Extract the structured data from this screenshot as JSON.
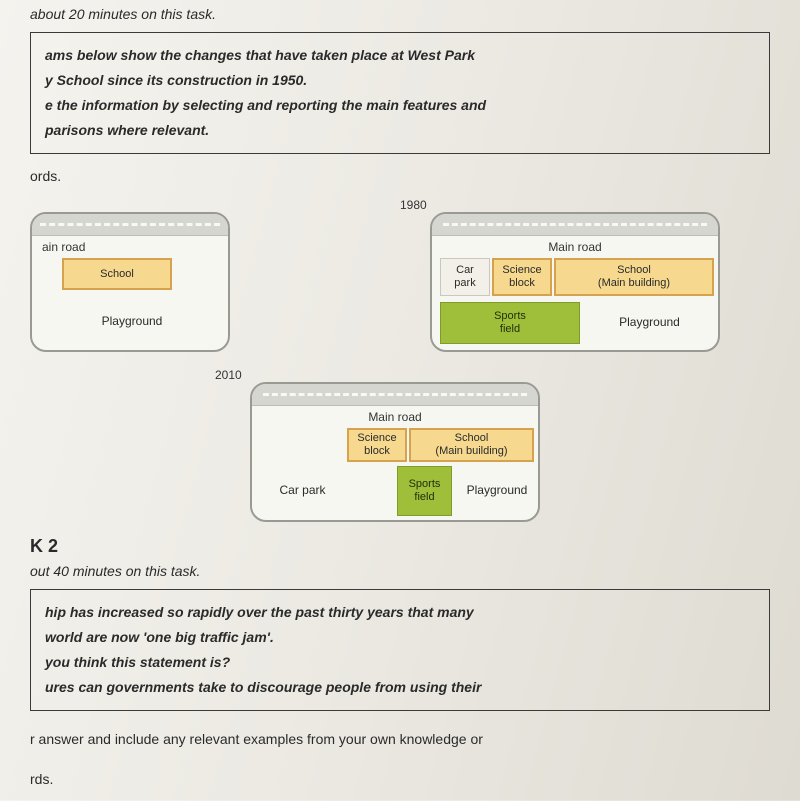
{
  "task1": {
    "time_fragment": "about 20 minutes on this task.",
    "box_line1": "ams below show the changes that have taken place at West Park",
    "box_line2": "y School since its construction in 1950.",
    "box_line3": "e the information by selecting and reporting the main features and",
    "box_line4": "parisons where relevant.",
    "words_fragment": "ords."
  },
  "diagrams": {
    "year_1950": "",
    "year_1980": "1980",
    "year_2010": "2010",
    "main_road": "Main road",
    "main_road_partial": "ain road",
    "map1": {
      "school": "School",
      "playground": "Playground"
    },
    "map2": {
      "car_park": "Car\npark",
      "science_block": "Science\nblock",
      "school_main": "School\n(Main building)",
      "sports_field": "Sports\nfield",
      "playground": "Playground"
    },
    "map3": {
      "science_block": "Science\nblock",
      "school_main": "School\n(Main building)",
      "car_park": "Car park",
      "sports_field": "Sports\nfield",
      "playground": "Playground"
    },
    "colors": {
      "school_fill": "#f6d98f",
      "school_border": "#d6a24d",
      "green_fill": "#9fbf3b",
      "green_border": "#7e9b2c",
      "plain_fill": "#f2f0e8",
      "plain_border": "#c9c7be",
      "road_fill": "#d6d6d0",
      "map_bg": "#f7f7f1",
      "map_border": "#9a9a94"
    }
  },
  "task2": {
    "heading_fragment": "K 2",
    "time_fragment": "out 40 minutes on this task.",
    "box_line1": "hip has increased so rapidly over the past thirty years that many",
    "box_line2": "world are now 'one big traffic jam'.",
    "box_line3": "you think this statement is?",
    "box_line4": "ures can governments take to discourage people from using their",
    "after_fragment": "r answer and include any relevant examples from your own knowledge or",
    "words_fragment": "rds."
  }
}
